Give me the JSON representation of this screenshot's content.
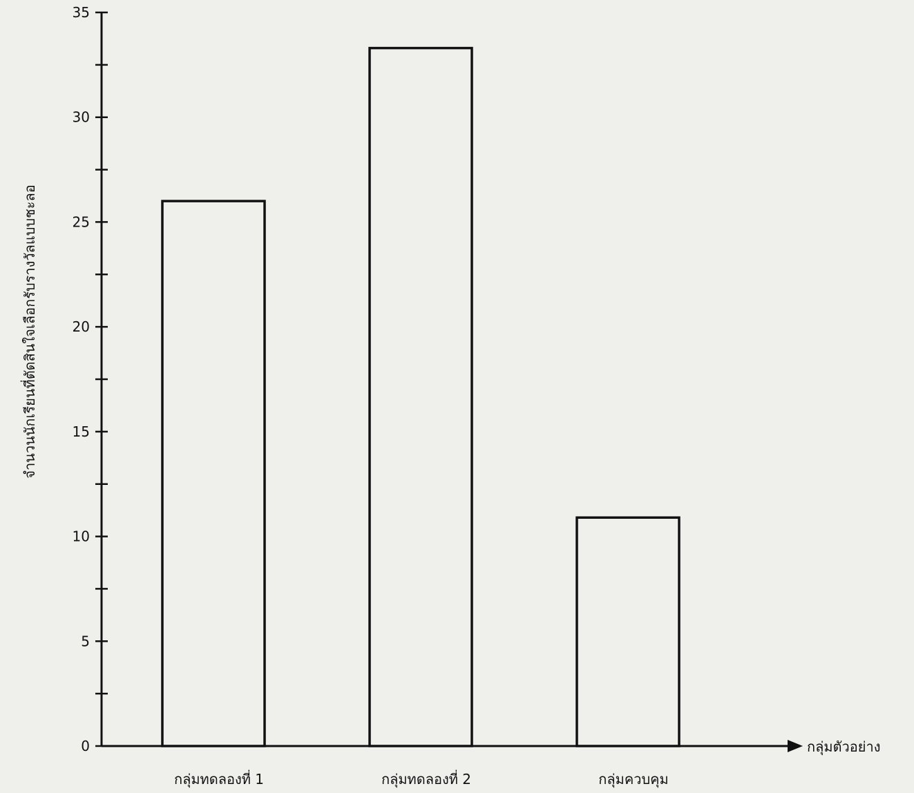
{
  "chart_data": {
    "type": "bar",
    "title": "",
    "xlabel": "กลุ่มตัวอย่าง",
    "ylabel": "จำนวนนักเรียนที่ตัดสินใจเลือกรับรางวัลแบบชะลอ",
    "categories": [
      "กลุ่มทดลองที่ 1",
      "กลุ่มทดลองที่ 2",
      "กลุ่มควบคุม"
    ],
    "values": [
      26,
      33.3,
      10.9
    ],
    "ylim": [
      0,
      35
    ],
    "yticks": [
      0,
      5,
      10,
      15,
      20,
      25,
      30,
      35
    ],
    "minor_tick_step": 2.5,
    "grid": false,
    "bar_fill": "none",
    "line_color": "#111111",
    "background_color": "#efefec"
  }
}
